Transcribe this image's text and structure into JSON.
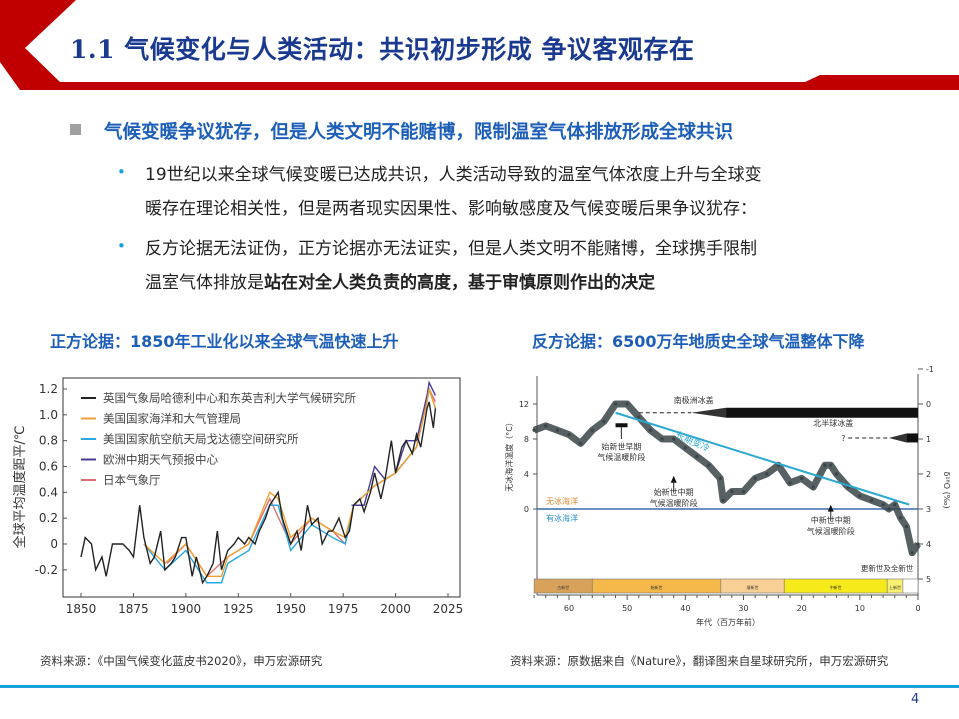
{
  "header": {
    "title": "1.1 气候变化与人类活动：共识初步形成 争议客观存在",
    "accent": "#c00000",
    "title_color": "#1a3a8f"
  },
  "main": {
    "heading": "气候变暖争议犹存，但是人类文明不能赌博，限制温室气体排放形成全球共识",
    "bullets": [
      {
        "line1": "19世纪以来全球气候变暖已达成共识，人类活动导致的温室气体浓度上升与全球变",
        "line2": "暖存在理论相关性，但是两者现实因果性、影响敏感度及气候变暖后果争议犹存："
      },
      {
        "line1": "反方论据无法证伪，正方论据亦无法证实，但是人类文明不能赌博，全球携手限制",
        "line2_normal": "温室气体排放是",
        "line2_bold": "站在对全人类负责的高度，基于审慎原则作出的决定"
      }
    ],
    "bullet_glyph": "•"
  },
  "left_panel": {
    "caption": "正方论据：1850年工业化以来全球气温快速上升",
    "source": "资料来源：《中国气候变化蓝皮书2020》，申万宏源研究"
  },
  "right_panel": {
    "caption": "反方论据：6500万年地质史全球气温整体下降",
    "source": "资料来源：原数据来自《Nature》，翻译图来自星球研究所，申万宏源研究"
  },
  "page_number": "4",
  "chart_data": [
    {
      "type": "line",
      "xlabel": "",
      "ylabel": "全球平均温度距平/℃",
      "xlim": [
        1850,
        2025
      ],
      "ylim": [
        -0.3,
        1.25
      ],
      "xticks": [
        "1850",
        "1875",
        "1900",
        "1925",
        "1950",
        "1975",
        "2000",
        "2025"
      ],
      "yticks": [
        "-0.2",
        "0",
        "0.2",
        "0.4",
        "0.6",
        "0.8",
        "1.0",
        "1.2"
      ],
      "legend": "top-left",
      "series": [
        {
          "name": "英国气象局哈德利中心和东英吉利大学气候研究所",
          "color": "#222222",
          "x": [
            1850,
            1852,
            1855,
            1857,
            1860,
            1862,
            1865,
            1868,
            1870,
            1873,
            1875,
            1878,
            1880,
            1883,
            1885,
            1888,
            1890,
            1893,
            1895,
            1898,
            1900,
            1903,
            1905,
            1908,
            1910,
            1913,
            1915,
            1917,
            1920,
            1923,
            1925,
            1928,
            1930,
            1933,
            1935,
            1938,
            1940,
            1944,
            1946,
            1950,
            1953,
            1955,
            1958,
            1960,
            1963,
            1965,
            1968,
            1970,
            1973,
            1976,
            1978,
            1980,
            1983,
            1985,
            1988,
            1990,
            1993,
            1995,
            1998,
            2000,
            2003,
            2005,
            2008,
            2010,
            2012,
            2015,
            2016,
            2018,
            2019
          ],
          "values": [
            -0.1,
            0.05,
            0.0,
            -0.2,
            -0.1,
            -0.25,
            0.0,
            0.0,
            0.0,
            -0.05,
            -0.1,
            0.3,
            0.05,
            -0.15,
            -0.1,
            0.1,
            -0.2,
            -0.15,
            -0.1,
            0.05,
            0.05,
            -0.25,
            -0.1,
            -0.3,
            -0.25,
            -0.15,
            0.1,
            -0.2,
            -0.05,
            0.0,
            0.05,
            0.0,
            0.05,
            0.0,
            0.1,
            0.2,
            0.3,
            0.4,
            0.2,
            0.0,
            0.1,
            -0.05,
            0.3,
            0.15,
            0.2,
            0.0,
            0.1,
            0.1,
            0.2,
            0.05,
            0.1,
            0.3,
            0.35,
            0.25,
            0.4,
            0.55,
            0.35,
            0.5,
            0.8,
            0.55,
            0.75,
            0.8,
            0.7,
            0.85,
            0.75,
            1.05,
            1.1,
            0.9,
            1.05
          ]
        },
        {
          "name": "美国国家海洋和大气管理局",
          "color": "#f0a030",
          "x": [
            1880,
            1890,
            1900,
            1910,
            1917,
            1920,
            1930,
            1940,
            1944,
            1950,
            1960,
            1970,
            1976,
            1980,
            1990,
            2000,
            2010,
            2015,
            2016,
            2019
          ],
          "values": [
            0.0,
            -0.15,
            0.0,
            -0.25,
            -0.25,
            -0.1,
            0.0,
            0.4,
            0.35,
            0.05,
            0.2,
            0.1,
            0.05,
            0.3,
            0.45,
            0.55,
            0.75,
            1.1,
            1.2,
            1.05
          ]
        },
        {
          "name": "美国国家航空航天局戈达德空间研究所",
          "color": "#2aa8e0",
          "x": [
            1880,
            1890,
            1900,
            1910,
            1917,
            1920,
            1930,
            1940,
            1944,
            1950,
            1960,
            1970,
            1976,
            1980,
            1990,
            2000,
            2010,
            2015,
            2016,
            2019
          ],
          "values": [
            0.0,
            -0.2,
            -0.05,
            -0.3,
            -0.3,
            -0.15,
            -0.05,
            0.3,
            0.3,
            -0.05,
            0.15,
            0.05,
            0.0,
            0.3,
            0.45,
            0.55,
            0.75,
            1.1,
            1.2,
            1.05
          ]
        },
        {
          "name": "欧洲中期天气预报中心",
          "color": "#4a3c9a",
          "x": [
            1979,
            1985,
            1990,
            1995,
            2000,
            2005,
            2010,
            2015,
            2016,
            2019
          ],
          "values": [
            0.3,
            0.3,
            0.6,
            0.5,
            0.55,
            0.8,
            0.8,
            1.15,
            1.25,
            1.15
          ]
        },
        {
          "name": "日本气象厅",
          "color": "#e07070",
          "x": [
            1891,
            1900,
            1910,
            1920,
            1930,
            1940,
            1950,
            1960,
            1970,
            1976,
            1980,
            1990,
            2000,
            2010,
            2016,
            2019
          ],
          "values": [
            -0.15,
            0.0,
            -0.25,
            -0.1,
            0.0,
            0.35,
            0.0,
            0.2,
            0.1,
            0.0,
            0.3,
            0.45,
            0.55,
            0.75,
            1.2,
            1.1
          ]
        }
      ]
    },
    {
      "type": "scatter",
      "xlabel": "年代（百万年前）",
      "ylabel": "无冰海洋温度（°C）",
      "y2label": "δ¹⁸O (‰)",
      "xlim": [
        66,
        0
      ],
      "ylim": [
        -8,
        14
      ],
      "y2lim": [
        5,
        -1
      ],
      "xticks": [
        "60",
        "50",
        "40",
        "30",
        "20",
        "10",
        "0"
      ],
      "yticks": [
        "0",
        "4",
        "8",
        "12"
      ],
      "y2ticks": [
        "-1",
        "0",
        "1",
        "2",
        "3",
        "4",
        "5"
      ],
      "series": [
        {
          "color": "#3a4448",
          "x": [
            66,
            64,
            62,
            60,
            58,
            56,
            54,
            52,
            50,
            48,
            46,
            44,
            42,
            40,
            38,
            36,
            34,
            33.5,
            32,
            30,
            28,
            26,
            24,
            22,
            20,
            18,
            16,
            15,
            14,
            12,
            10,
            8,
            6,
            5,
            4,
            3,
            2,
            1,
            0
          ],
          "values": [
            9,
            9.5,
            9,
            8.5,
            7.5,
            9,
            10,
            12,
            12,
            10.5,
            9,
            8,
            8,
            7,
            6,
            5,
            3.5,
            1,
            2,
            2,
            3.5,
            4,
            5,
            3,
            3.5,
            2.5,
            5,
            5,
            4,
            2.5,
            1.5,
            1,
            0.5,
            0,
            0.5,
            -1,
            -2,
            -5,
            -4
          ]
        }
      ],
      "trend": {
        "label": "长期变冷",
        "color": "#2aa8d0",
        "x": [
          52,
          1.5
        ],
        "values": [
          11,
          0.5
        ]
      },
      "reference_line": {
        "value": 0,
        "color": "#3a6ab0",
        "above_label": "无冰海洋",
        "below_label": "有冰海洋",
        "above_color": "#e08a30",
        "below_color": "#2a90c8"
      },
      "ice_sheets": [
        {
          "label": "南极洲冰盖",
          "dashed": [
            48,
            39
          ],
          "taper": [
            39,
            33
          ],
          "solid": [
            33,
            0
          ]
        },
        {
          "label": "北半球冰盖",
          "prefix": "?",
          "dashed": [
            12,
            5
          ],
          "taper": [
            5,
            2
          ],
          "solid": [
            2,
            0
          ]
        }
      ],
      "annotations": [
        {
          "label1": "始新世早期",
          "label2": "气候温暖阶段",
          "x": 51
        },
        {
          "label1": "始新世中期",
          "label2": "气候温暖阶段",
          "x": 42
        },
        {
          "label1": "中新世中期",
          "label2": "气候温暖阶段",
          "x": 15
        },
        {
          "label1": "更新世及全新世",
          "x": 2
        }
      ],
      "epochs": [
        {
          "name": "古新世",
          "start": 66,
          "end": 56,
          "color": "#d9a25a"
        },
        {
          "name": "始新世",
          "start": 56,
          "end": 33.9,
          "color": "#f5b84a"
        },
        {
          "name": "渐新世",
          "start": 33.9,
          "end": 23,
          "color": "#f8cf94"
        },
        {
          "name": "中新世",
          "start": 23,
          "end": 5.3,
          "color": "#f7ea1a"
        },
        {
          "name": "上新世",
          "start": 5.3,
          "end": 2.6,
          "color": "#f8f070"
        },
        {
          "name": "",
          "start": 2.6,
          "end": 0,
          "color": "#ffffff"
        }
      ]
    }
  ]
}
